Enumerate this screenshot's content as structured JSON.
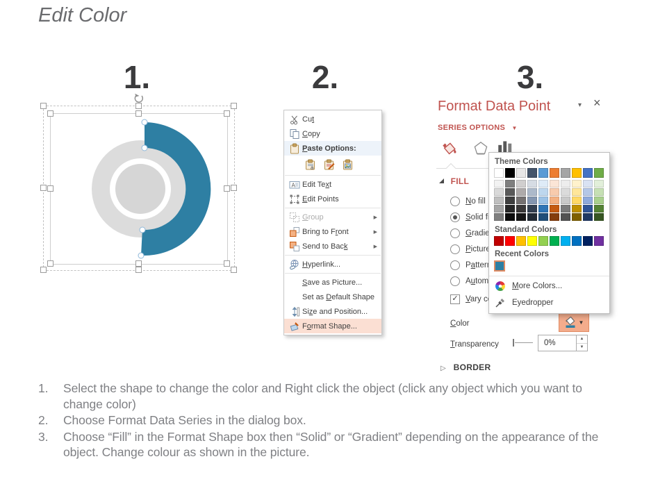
{
  "title": "Edit Color",
  "step_labels": [
    "1.",
    "2.",
    "3."
  ],
  "shape": {
    "arc_color": "#2E7FA3",
    "donut_ring_color": "#DCDCDC",
    "donut_center_color": "#D6D6D6"
  },
  "context_menu": {
    "items": [
      {
        "label": "Cut",
        "u": 2,
        "icon": "scissors-icon"
      },
      {
        "label": "Copy",
        "u": 0,
        "icon": "copy-icon"
      },
      {
        "label": "Paste Options:",
        "u": 0,
        "icon": "clipboard-icon",
        "band": true,
        "bold": true
      },
      {
        "type": "paste-icons",
        "icons": [
          "paste-keep-text-icon",
          "paste-formatting-icon",
          "paste-picture-icon"
        ]
      },
      {
        "type": "separator"
      },
      {
        "label": "Edit Text",
        "u": 7,
        "icon": "edit-text-icon"
      },
      {
        "label": "Edit Points",
        "u": 0,
        "icon": "edit-points-icon"
      },
      {
        "type": "separator"
      },
      {
        "label": "Group",
        "u": 0,
        "icon": "group-icon",
        "disabled": true,
        "submenu": true
      },
      {
        "label": "Bring to Front",
        "u": 10,
        "icon": "bring-front-icon",
        "submenu": true
      },
      {
        "label": "Send to Back",
        "u": 11,
        "icon": "send-back-icon",
        "submenu": true
      },
      {
        "type": "separator"
      },
      {
        "label": "Hyperlink...",
        "u": 0,
        "icon": "hyperlink-icon"
      },
      {
        "type": "separator"
      },
      {
        "label": "Save as Picture...",
        "u": 0,
        "icon": null
      },
      {
        "label": "Set as Default Shape",
        "u": 7,
        "icon": null
      },
      {
        "label": "Size and Position...",
        "u": 2,
        "icon": "size-position-icon"
      },
      {
        "label": "Format Shape...",
        "u": 1,
        "icon": "format-shape-icon",
        "highlighted": true
      }
    ]
  },
  "format_pane": {
    "title": "Format Data Point",
    "collapse_icon": "▾",
    "close_icon": "×",
    "series_options_label": "SERIES OPTIONS",
    "dropdown_arrow": "▼",
    "tabs": [
      "fill-line-tab",
      "effects-tab",
      "series-options-tab"
    ],
    "fill_section": {
      "header": "FILL",
      "options": [
        {
          "label": "No fill",
          "u": 0,
          "selected": false
        },
        {
          "label": "Solid fill",
          "u": 0,
          "selected": true
        },
        {
          "label": "Gradient fill",
          "u": 0,
          "selected": false
        },
        {
          "label": "Picture or texture fill",
          "u": 0,
          "selected": false
        },
        {
          "label": "Pattern fill",
          "u": 1,
          "selected": false
        },
        {
          "label": "Automatic",
          "u": 1,
          "selected": false
        }
      ],
      "checkbox": {
        "label": "Vary colors by point",
        "u": 0,
        "checked": true,
        "check_glyph": "✓"
      }
    },
    "color_row": {
      "label": "Color",
      "u": 0
    },
    "transparency_row": {
      "label": "Transparency",
      "u": 0,
      "value": "0%"
    },
    "border_section": {
      "header": "BORDER",
      "marker": "▷"
    }
  },
  "color_picker": {
    "theme_label": "Theme Colors",
    "standard_label": "Standard Colors",
    "recent_label": "Recent Colors",
    "more_colors_label": "More Colors...",
    "more_colors_u": 0,
    "eyedropper_label": "Eyedropper",
    "theme_colors": [
      "#FFFFFF",
      "#000000",
      "#E7E6E6",
      "#44546A",
      "#5B9BD5",
      "#ED7D31",
      "#A5A5A5",
      "#FFC000",
      "#4472C4",
      "#70AD47"
    ],
    "theme_variants": [
      [
        "#F2F2F2",
        "#D9D9D9",
        "#BFBFBF",
        "#A6A6A6",
        "#7F7F7F"
      ],
      [
        "#7F7F7F",
        "#595959",
        "#3F3F3F",
        "#262626",
        "#0C0C0C"
      ],
      [
        "#D0CECE",
        "#AEAAAA",
        "#757171",
        "#3A3838",
        "#161616"
      ],
      [
        "#D6DCE4",
        "#ACB9CA",
        "#8496B0",
        "#333F50",
        "#222B35"
      ],
      [
        "#DEEBF7",
        "#BDD7EE",
        "#9DC3E6",
        "#2E75B6",
        "#1F4E79"
      ],
      [
        "#FBE5D6",
        "#F8CBAD",
        "#F4B183",
        "#C55A11",
        "#843C0C"
      ],
      [
        "#EDEDED",
        "#DBDBDB",
        "#C9C9C9",
        "#7B7B7B",
        "#525252"
      ],
      [
        "#FFF2CC",
        "#FFE699",
        "#FFD966",
        "#BF9000",
        "#7F6000"
      ],
      [
        "#D9E2F3",
        "#B4C7E7",
        "#8FAADC",
        "#2F5496",
        "#1F3864"
      ],
      [
        "#E2EFDA",
        "#C6E0B4",
        "#A9D08E",
        "#548235",
        "#375623"
      ]
    ],
    "standard_colors": [
      "#C00000",
      "#FF0000",
      "#FFC000",
      "#FFFF00",
      "#92D050",
      "#00B050",
      "#00B0F0",
      "#0070C0",
      "#002060",
      "#7030A0"
    ],
    "recent_colors": [
      "#2E7FA3"
    ]
  },
  "instructions": [
    {
      "num": "1.",
      "text": "Select the shape to change the color and Right click the object (click any object which you want to change color)"
    },
    {
      "num": "2.",
      "text": "Choose Format Data Series in the dialog box."
    },
    {
      "num": "3.",
      "text": "Choose “Fill” in the Format Shape box then “Solid” or “Gradient” depending on the appearance of the object. Change colour as shown in the picture."
    }
  ],
  "colors": {
    "accent_red": "#C0534F",
    "menu_highlight": "#FBDFD3",
    "color_button_bg": "#F3AC8C",
    "color_button_border": "#E08B62",
    "instruction_gray": "#7F8084"
  }
}
